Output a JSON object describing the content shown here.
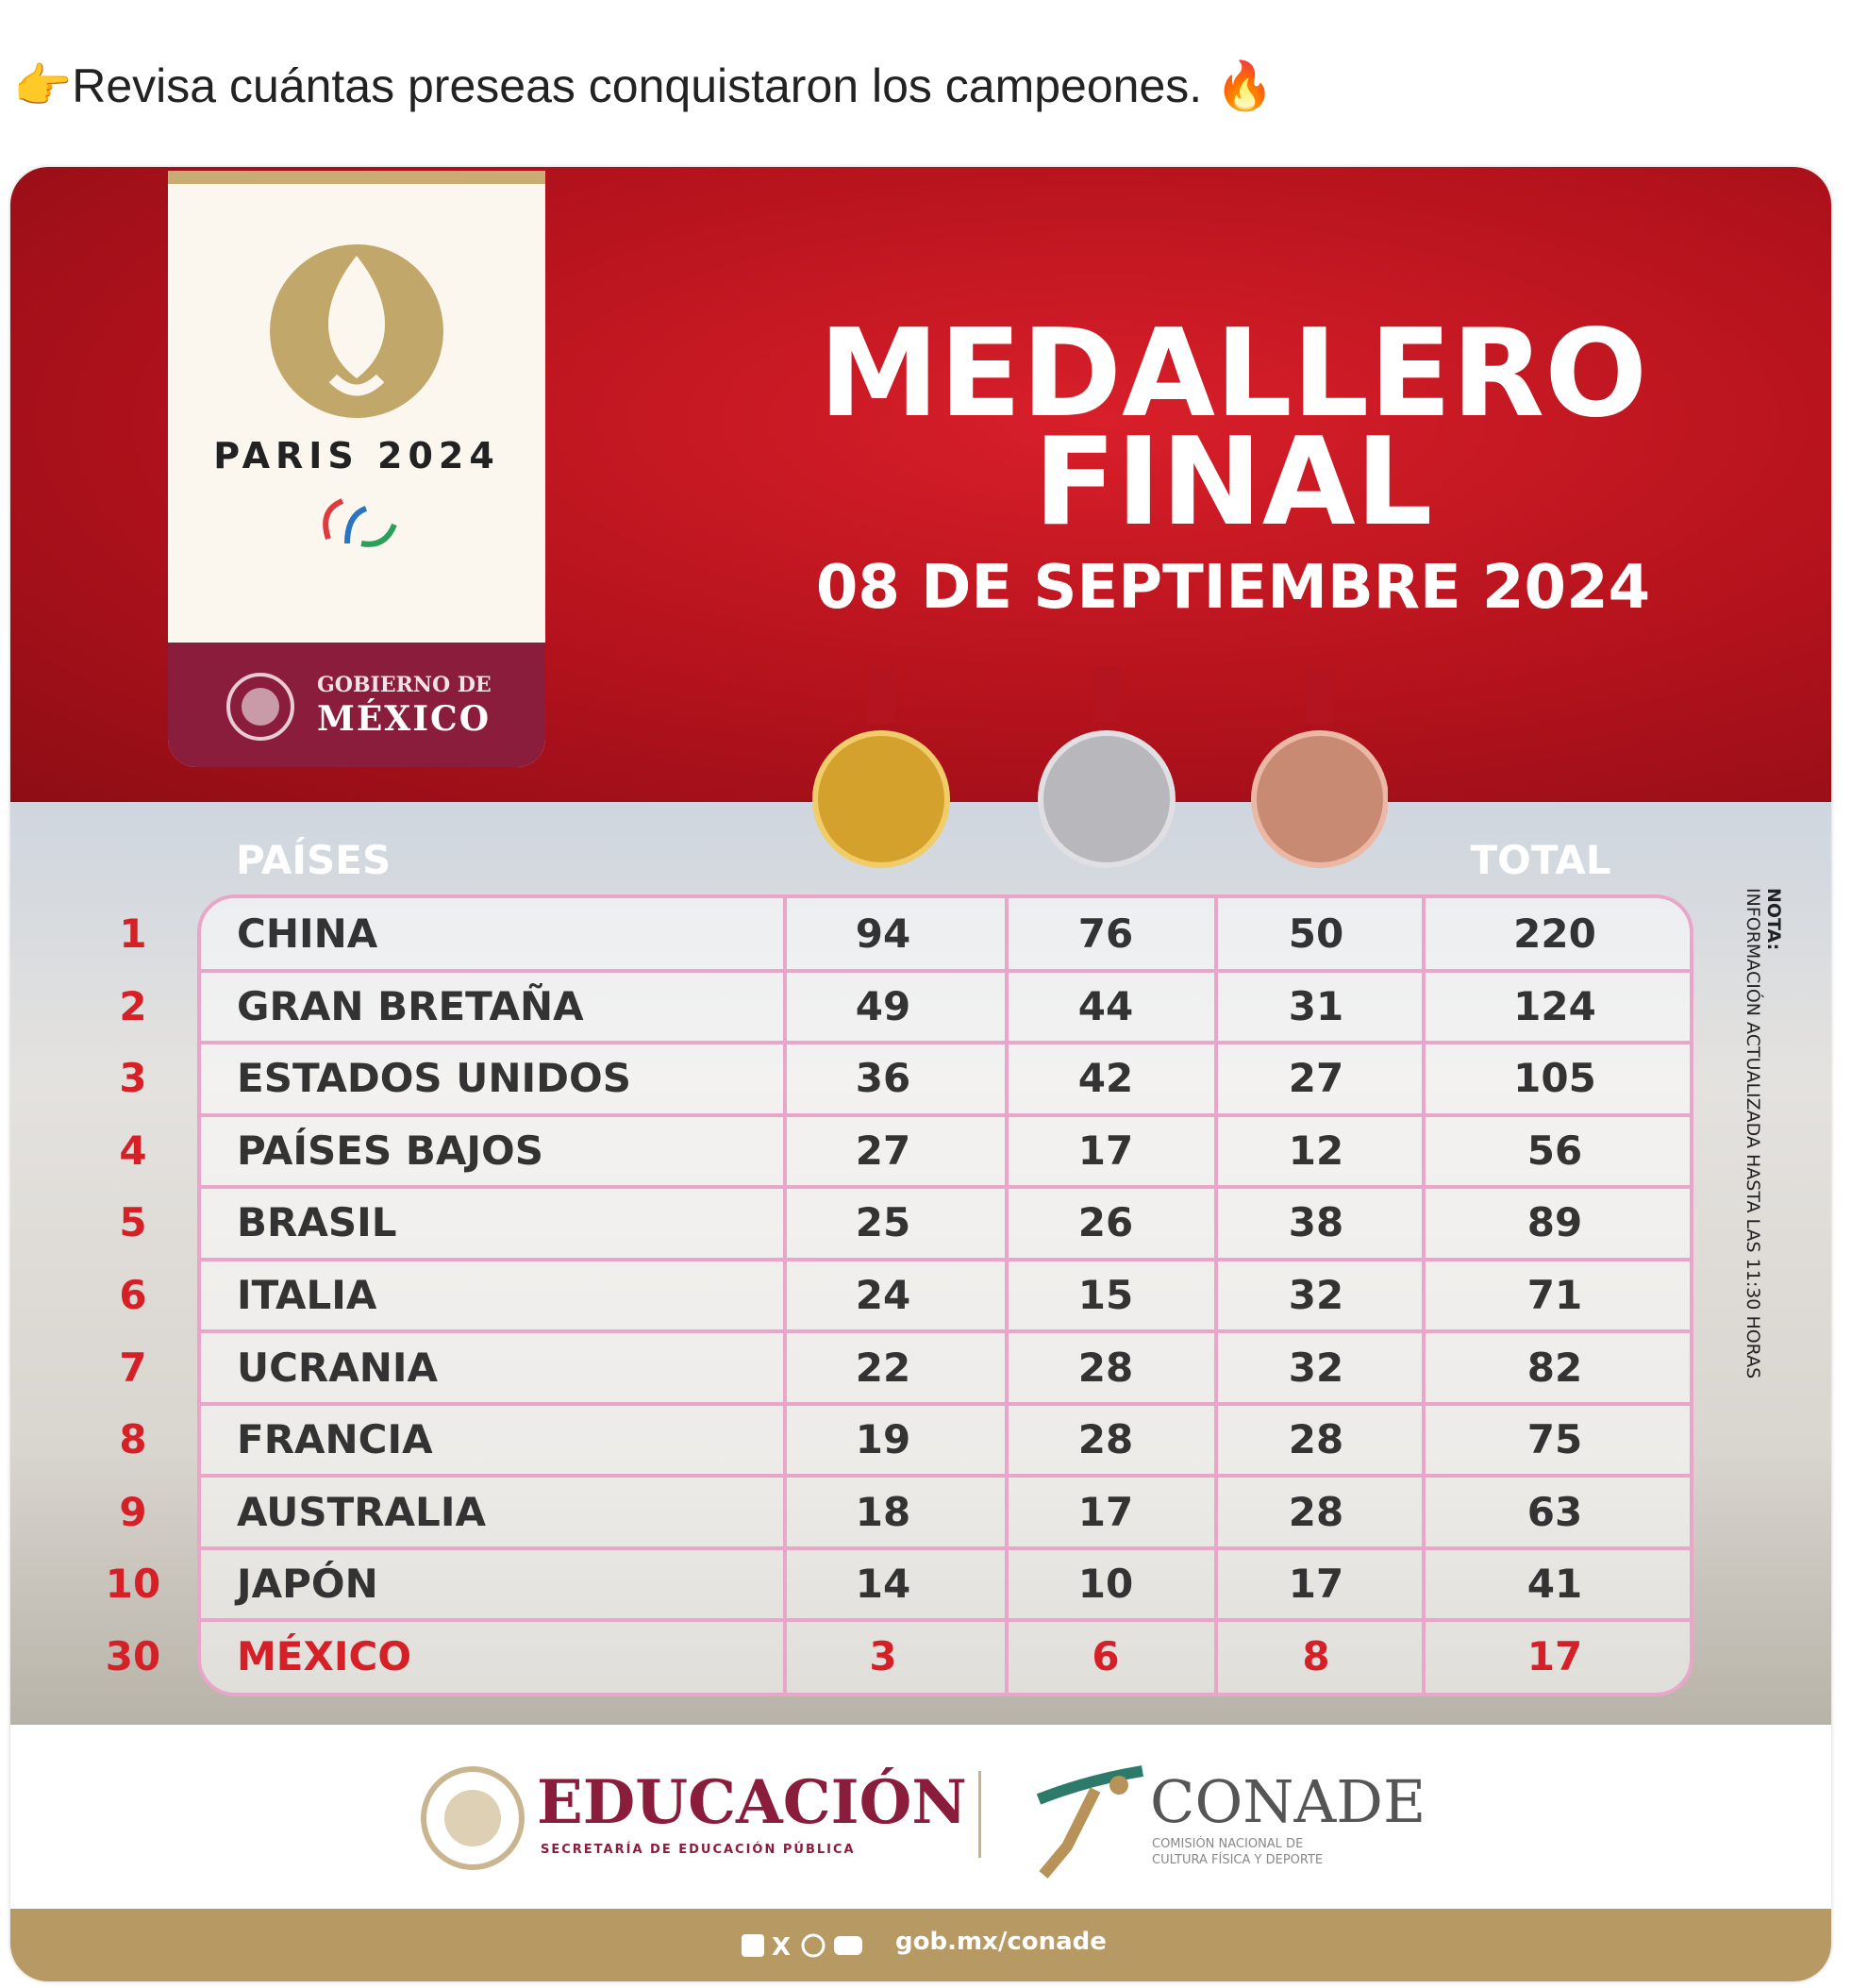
{
  "post": {
    "text": "👉Revisa cuántas preseas conquistaron los campeones. 🔥"
  },
  "graphic": {
    "logo": {
      "games": "PARIS 2024",
      "government_line1": "GOBIERNO DE",
      "government_line2": "MÉXICO"
    },
    "title": {
      "line1": "MEDALLERO",
      "line2": "FINAL",
      "date": "08 DE SEPTIEMBRE 2024"
    },
    "table": {
      "headers": {
        "country": "PAÍSES",
        "total": "TOTAL"
      },
      "rows": [
        {
          "rank": 1,
          "country": "CHINA",
          "gold": 94,
          "silver": 76,
          "bronze": 50,
          "total": 220
        },
        {
          "rank": 2,
          "country": "GRAN BRETAÑA",
          "gold": 49,
          "silver": 44,
          "bronze": 31,
          "total": 124
        },
        {
          "rank": 3,
          "country": "ESTADOS UNIDOS",
          "gold": 36,
          "silver": 42,
          "bronze": 27,
          "total": 105
        },
        {
          "rank": 4,
          "country": "PAÍSES BAJOS",
          "gold": 27,
          "silver": 17,
          "bronze": 12,
          "total": 56
        },
        {
          "rank": 5,
          "country": "BRASIL",
          "gold": 25,
          "silver": 26,
          "bronze": 38,
          "total": 89
        },
        {
          "rank": 6,
          "country": "ITALIA",
          "gold": 24,
          "silver": 15,
          "bronze": 32,
          "total": 71
        },
        {
          "rank": 7,
          "country": "UCRANIA",
          "gold": 22,
          "silver": 28,
          "bronze": 32,
          "total": 82
        },
        {
          "rank": 8,
          "country": "FRANCIA",
          "gold": 19,
          "silver": 28,
          "bronze": 28,
          "total": 75
        },
        {
          "rank": 9,
          "country": "AUSTRALIA",
          "gold": 18,
          "silver": 17,
          "bronze": 28,
          "total": 63
        },
        {
          "rank": 10,
          "country": "JAPÓN",
          "gold": 14,
          "silver": 10,
          "bronze": 17,
          "total": 41
        },
        {
          "rank": 30,
          "country": "MÉXICO",
          "gold": 3,
          "silver": 6,
          "bronze": 8,
          "total": 17
        }
      ]
    },
    "note": {
      "label": "NOTA:",
      "text": "INFORMACIÓN ACTUALIZADA HASTA LAS 11:30 HORAS"
    },
    "footer": {
      "education": "EDUCACIÓN",
      "education_sub": "SECRETARÍA DE EDUCACIÓN PÚBLICA",
      "conade": "CONADE",
      "conade_sub1": "COMISIÓN NACIONAL DE",
      "conade_sub2": "CULTURA FÍSICA Y DEPORTE",
      "website": "gob.mx/conade"
    }
  }
}
